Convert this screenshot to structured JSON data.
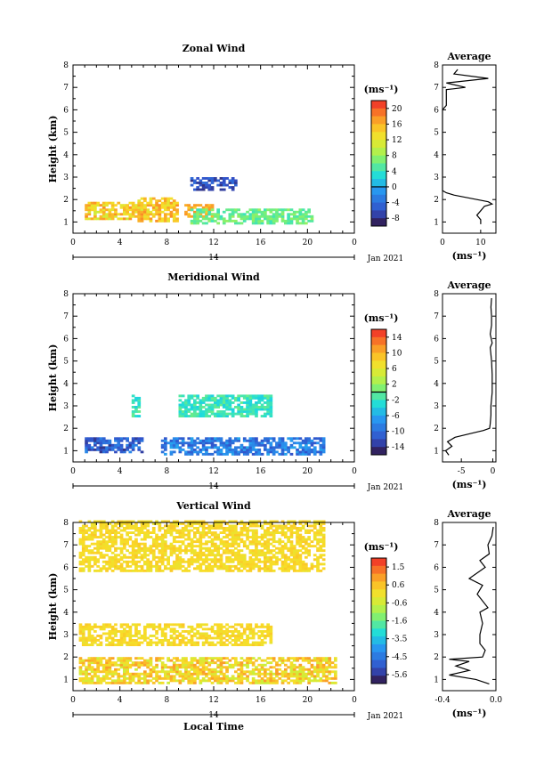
{
  "figure": {
    "x_label": "Local Time",
    "date_label": "Jan 2021",
    "day_label": "14",
    "y_label": "Height (km)",
    "unit_label": "(ms⁻¹)",
    "profile_title": "Average"
  },
  "chart_data": [
    {
      "type": "heatmap",
      "title": "Zonal Wind",
      "xlabel": "",
      "ylabel": "Height (km)",
      "x_ticks": [
        "0",
        "4",
        "8",
        "12",
        "16",
        "20",
        "0"
      ],
      "y_ticks": [
        "1",
        "2",
        "3",
        "4",
        "5",
        "6",
        "7",
        "8"
      ],
      "xlim": [
        0,
        24
      ],
      "ylim": [
        0.5,
        8
      ],
      "colorbar": {
        "unit": "(ms⁻¹)",
        "ticks": [
          "20",
          "16",
          "12",
          "8",
          "4",
          "0",
          "-4",
          "-8"
        ],
        "min": -10,
        "max": 22,
        "zero_line": 0
      },
      "data_regions": [
        {
          "x": [
            1.0,
            6.5
          ],
          "y": [
            1.1,
            1.9
          ],
          "value_range": [
            10,
            18
          ]
        },
        {
          "x": [
            5.5,
            9.0
          ],
          "y": [
            1.0,
            2.1
          ],
          "value_range": [
            12,
            18
          ]
        },
        {
          "x": [
            9.5,
            12.0
          ],
          "y": [
            1.2,
            1.8
          ],
          "value_range": [
            14,
            18
          ]
        },
        {
          "x": [
            10.0,
            20.5
          ],
          "y": [
            0.9,
            1.6
          ],
          "value_range": [
            4,
            8
          ]
        },
        {
          "x": [
            10.0,
            14.0
          ],
          "y": [
            2.4,
            3.0
          ],
          "value_range": [
            -8,
            -4
          ]
        }
      ],
      "average_profile": {
        "xlim": [
          0,
          14
        ],
        "x_ticks": [
          "0",
          "10"
        ],
        "height": [
          0.9,
          1.1,
          1.3,
          1.5,
          1.7,
          1.8,
          1.9,
          2.0,
          2.1,
          2.2,
          2.3,
          2.4,
          2.6,
          4.0,
          6.0,
          6.2,
          6.5,
          6.9,
          7.0,
          7.2,
          7.4,
          7.6,
          7.8
        ],
        "value": [
          10,
          10,
          9,
          10,
          11,
          13,
          12,
          9,
          6,
          3,
          1,
          0,
          0,
          0,
          0,
          1,
          1,
          1,
          6,
          1,
          12,
          3,
          4
        ]
      }
    },
    {
      "type": "heatmap",
      "title": "Meridional Wind",
      "xlabel": "",
      "ylabel": "Height (km)",
      "x_ticks": [
        "0",
        "4",
        "8",
        "12",
        "16",
        "20",
        "0"
      ],
      "y_ticks": [
        "1",
        "2",
        "3",
        "4",
        "5",
        "6",
        "7",
        "8"
      ],
      "xlim": [
        0,
        24
      ],
      "ylim": [
        0.5,
        8
      ],
      "colorbar": {
        "unit": "(ms⁻¹)",
        "ticks": [
          "14",
          "10",
          "6",
          "2",
          "-2",
          "-6",
          "-10",
          "-14"
        ],
        "min": -16,
        "max": 16,
        "zero_line": 0
      },
      "data_regions": [
        {
          "x": [
            1.0,
            6.0
          ],
          "y": [
            0.9,
            1.6
          ],
          "value_range": [
            -14,
            -8
          ]
        },
        {
          "x": [
            7.5,
            21.5
          ],
          "y": [
            0.8,
            1.6
          ],
          "value_range": [
            -12,
            -6
          ]
        },
        {
          "x": [
            5.0,
            5.6
          ],
          "y": [
            2.5,
            3.5
          ],
          "value_range": [
            -4,
            0
          ]
        },
        {
          "x": [
            9.0,
            17.0
          ],
          "y": [
            2.5,
            3.5
          ],
          "value_range": [
            -4,
            0
          ]
        }
      ],
      "average_profile": {
        "xlim": [
          -8,
          0.5
        ],
        "x_ticks": [
          "-5",
          "0"
        ],
        "height": [
          0.8,
          1.0,
          1.2,
          1.4,
          1.6,
          1.8,
          1.9,
          2.0,
          2.2,
          2.6,
          3.0,
          3.6,
          4.4,
          5.0,
          5.6,
          5.8,
          6.2,
          6.6,
          7.0,
          7.4,
          7.8
        ],
        "value": [
          -7,
          -7.5,
          -6.5,
          -7.2,
          -6,
          -3,
          -1.5,
          -0.5,
          -0.4,
          -0.3,
          -0.3,
          -0.1,
          -0.1,
          -0.2,
          -0.4,
          -0.1,
          -0.4,
          -0.2,
          -0.2,
          -0.3,
          -0.2
        ]
      }
    },
    {
      "type": "heatmap",
      "title": "Vertical Wind",
      "xlabel": "Local Time",
      "ylabel": "Height (km)",
      "x_ticks": [
        "0",
        "4",
        "8",
        "12",
        "16",
        "20",
        "0"
      ],
      "y_ticks": [
        "1",
        "2",
        "3",
        "4",
        "5",
        "6",
        "7",
        "8"
      ],
      "xlim": [
        0,
        24
      ],
      "ylim": [
        0.5,
        8
      ],
      "colorbar": {
        "unit": "(ms⁻¹)",
        "ticks": [
          "1.5",
          "0.6",
          "-0.6",
          "-1.6",
          "-3.5",
          "-4.5",
          "-5.6"
        ],
        "min": -6.0,
        "max": 2.0,
        "zero_line": null
      },
      "data_regions": [
        {
          "x": [
            0.5,
            21.5
          ],
          "y": [
            5.8,
            8.0
          ],
          "value_range": [
            -0.4,
            0.2
          ]
        },
        {
          "x": [
            0.5,
            17.0
          ],
          "y": [
            2.5,
            3.5
          ],
          "value_range": [
            -0.4,
            0.2
          ]
        },
        {
          "x": [
            0.5,
            22.5
          ],
          "y": [
            0.8,
            2.0
          ],
          "value_range": [
            -1.0,
            0.8
          ]
        }
      ],
      "average_profile": {
        "xlim": [
          -0.4,
          0.0
        ],
        "x_ticks": [
          "-0.4",
          "0.0"
        ],
        "height": [
          0.8,
          1.0,
          1.2,
          1.4,
          1.6,
          1.8,
          1.9,
          2.0,
          2.3,
          2.6,
          3.0,
          3.5,
          4.0,
          4.2,
          4.8,
          5.2,
          5.5,
          6.0,
          6.3,
          6.6,
          7.0,
          7.4,
          7.8
        ],
        "value": [
          -0.05,
          -0.15,
          -0.35,
          -0.2,
          -0.3,
          -0.2,
          -0.35,
          -0.1,
          -0.08,
          -0.12,
          -0.12,
          -0.1,
          -0.12,
          -0.06,
          -0.14,
          -0.1,
          -0.2,
          -0.08,
          -0.12,
          -0.05,
          -0.06,
          -0.03,
          -0.02
        ]
      }
    }
  ]
}
